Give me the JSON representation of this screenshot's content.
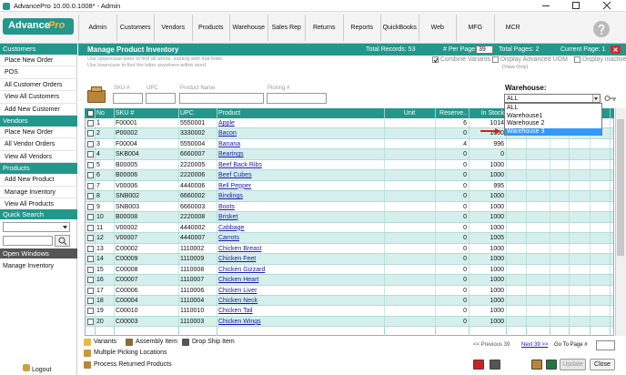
{
  "window": {
    "title": "AdvancePro 10.00.0.1008* - Admin"
  },
  "logo": {
    "text1": "Advance",
    "text2": "Pro"
  },
  "menu": [
    "Admin",
    "Customers",
    "Vendors",
    "Products",
    "Warehouse",
    "Sales Rep",
    "Returns",
    "Reports",
    "QuickBooks",
    "Web",
    "MFG",
    "MCR"
  ],
  "sidebar": {
    "sections": [
      {
        "title": "Customers",
        "items": [
          "Place New Order",
          "POS",
          "All Customer Orders",
          "View All Customers",
          "Add New Customer"
        ]
      },
      {
        "title": "Vendors",
        "items": [
          "Place New Order",
          "All Vendor Orders",
          "View All Vendors"
        ]
      },
      {
        "title": "Products",
        "items": [
          "Add New Product",
          "Manage Inventory",
          "View All Products"
        ]
      }
    ],
    "quick_search": "Quick Search",
    "open_windows": {
      "title": "Open Windows",
      "items": [
        "Manage Inventory"
      ]
    },
    "logout": "Logout"
  },
  "header": {
    "title": "Manage Product Inventory",
    "total_records": "Total Records: 53",
    "per_page_label": "# Per Page:",
    "per_page": 39,
    "total_pages": "Total Pages: 2",
    "current_page": "Current Page: 1"
  },
  "hints": [
    "Use Uppercase letter to find all words, starting with that letter.",
    "Use lowercase to find the letter anywhere within word."
  ],
  "options": [
    {
      "label": "Combine Variants",
      "checked": true
    },
    {
      "label": "Display Advanced UOM",
      "note": "(View Only)",
      "checked": false
    },
    {
      "label": "Display inactive",
      "checked": false
    }
  ],
  "filters": [
    "SKU #",
    "UPC",
    "Product Name",
    "Picking #"
  ],
  "warehouse": {
    "label": "Warehouse:",
    "selected": "ALL",
    "options": [
      "ALL",
      "Warehouse1",
      "Warehouse 2",
      "Warehouse 3"
    ],
    "highlighted": 3
  },
  "table": {
    "columns": [
      "No",
      "SKU #",
      "UPC",
      "Product",
      "Unit",
      "Reserve..",
      "In Stock"
    ],
    "rows": [
      [
        1,
        "F00001",
        "5550001",
        "Apple",
        6,
        1014
      ],
      [
        2,
        "P00002",
        "3330002",
        "Bacon",
        0,
        1000
      ],
      [
        3,
        "F00004",
        "5550004",
        "Banana",
        4,
        996
      ],
      [
        4,
        "SKB004",
        "6660007",
        "Bearings",
        0,
        0
      ],
      [
        5,
        "B00005",
        "2220005",
        "Beef Back Ribs",
        0,
        1000
      ],
      [
        6,
        "B00006",
        "2220006",
        "Beef Cubes",
        0,
        1000
      ],
      [
        7,
        "V00006",
        "4440006",
        "Bell Pepper",
        0,
        995
      ],
      [
        8,
        "SNB002",
        "6660002",
        "Bindings",
        0,
        1000
      ],
      [
        9,
        "SNB003",
        "6660003",
        "Boots",
        0,
        1000
      ],
      [
        10,
        "B00008",
        "2220008",
        "Brisket",
        0,
        1000
      ],
      [
        11,
        "V00002",
        "4440002",
        "Cabbage",
        0,
        1000
      ],
      [
        12,
        "V00007",
        "4440007",
        "Carrots",
        0,
        1005
      ],
      [
        13,
        "C00002",
        "1110002",
        "Chicken Breast",
        0,
        1000
      ],
      [
        14,
        "C00009",
        "1110009",
        "Chicken Feet",
        0,
        1000
      ],
      [
        15,
        "C00008",
        "1110008",
        "Chicken Gizzard",
        0,
        1000
      ],
      [
        16,
        "C00007",
        "1110007",
        "Chicken Heart",
        0,
        1000
      ],
      [
        17,
        "C00006",
        "1110006",
        "Chicken Liver",
        0,
        1000
      ],
      [
        18,
        "C00004",
        "1110004",
        "Chicken Neck",
        0,
        1000
      ],
      [
        19,
        "C00010",
        "1110010",
        "Chicken Tail",
        0,
        1000
      ],
      [
        20,
        "C00003",
        "1110003",
        "Chicken Wings",
        0,
        1000
      ]
    ]
  },
  "legend": [
    "Variants",
    "Assembly Item",
    "Drop Ship Item",
    "Multiple Picking Locations",
    "Process Returned Products"
  ],
  "pager": {
    "prev": "<< Previous 39",
    "next": "Next 39 >>",
    "goto": "Go To Page #"
  },
  "buttons": [
    "Update",
    "Close"
  ]
}
